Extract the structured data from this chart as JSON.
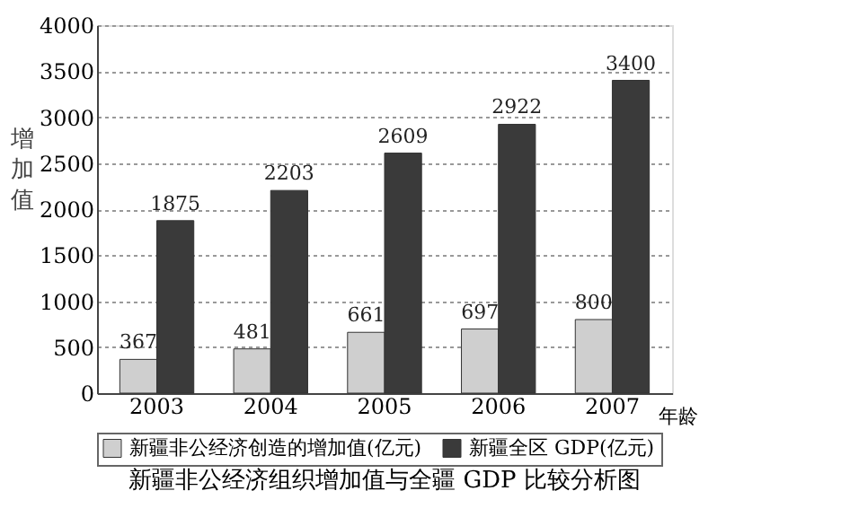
{
  "chart_data": {
    "type": "bar",
    "title": "新疆非公经济组织增加值与全疆 GDP 比较分析图",
    "xlabel": "年龄",
    "ylabel": "增加值",
    "categories": [
      "2003",
      "2004",
      "2005",
      "2006",
      "2007"
    ],
    "series": [
      {
        "name": "新疆非公经济创造的增加值(亿元)",
        "color": "#cfcfcf",
        "values": [
          367,
          481,
          661,
          697,
          800
        ]
      },
      {
        "name": "新疆全区 GDP(亿元)",
        "color": "#3a3a3a",
        "values": [
          1875,
          2203,
          2609,
          2922,
          3400
        ]
      }
    ],
    "ylim": [
      0,
      4000
    ],
    "yticks": [
      0,
      500,
      1000,
      1500,
      2000,
      2500,
      3000,
      3500,
      4000
    ],
    "grid": "y",
    "legend": "bottom",
    "data_labels": true
  }
}
